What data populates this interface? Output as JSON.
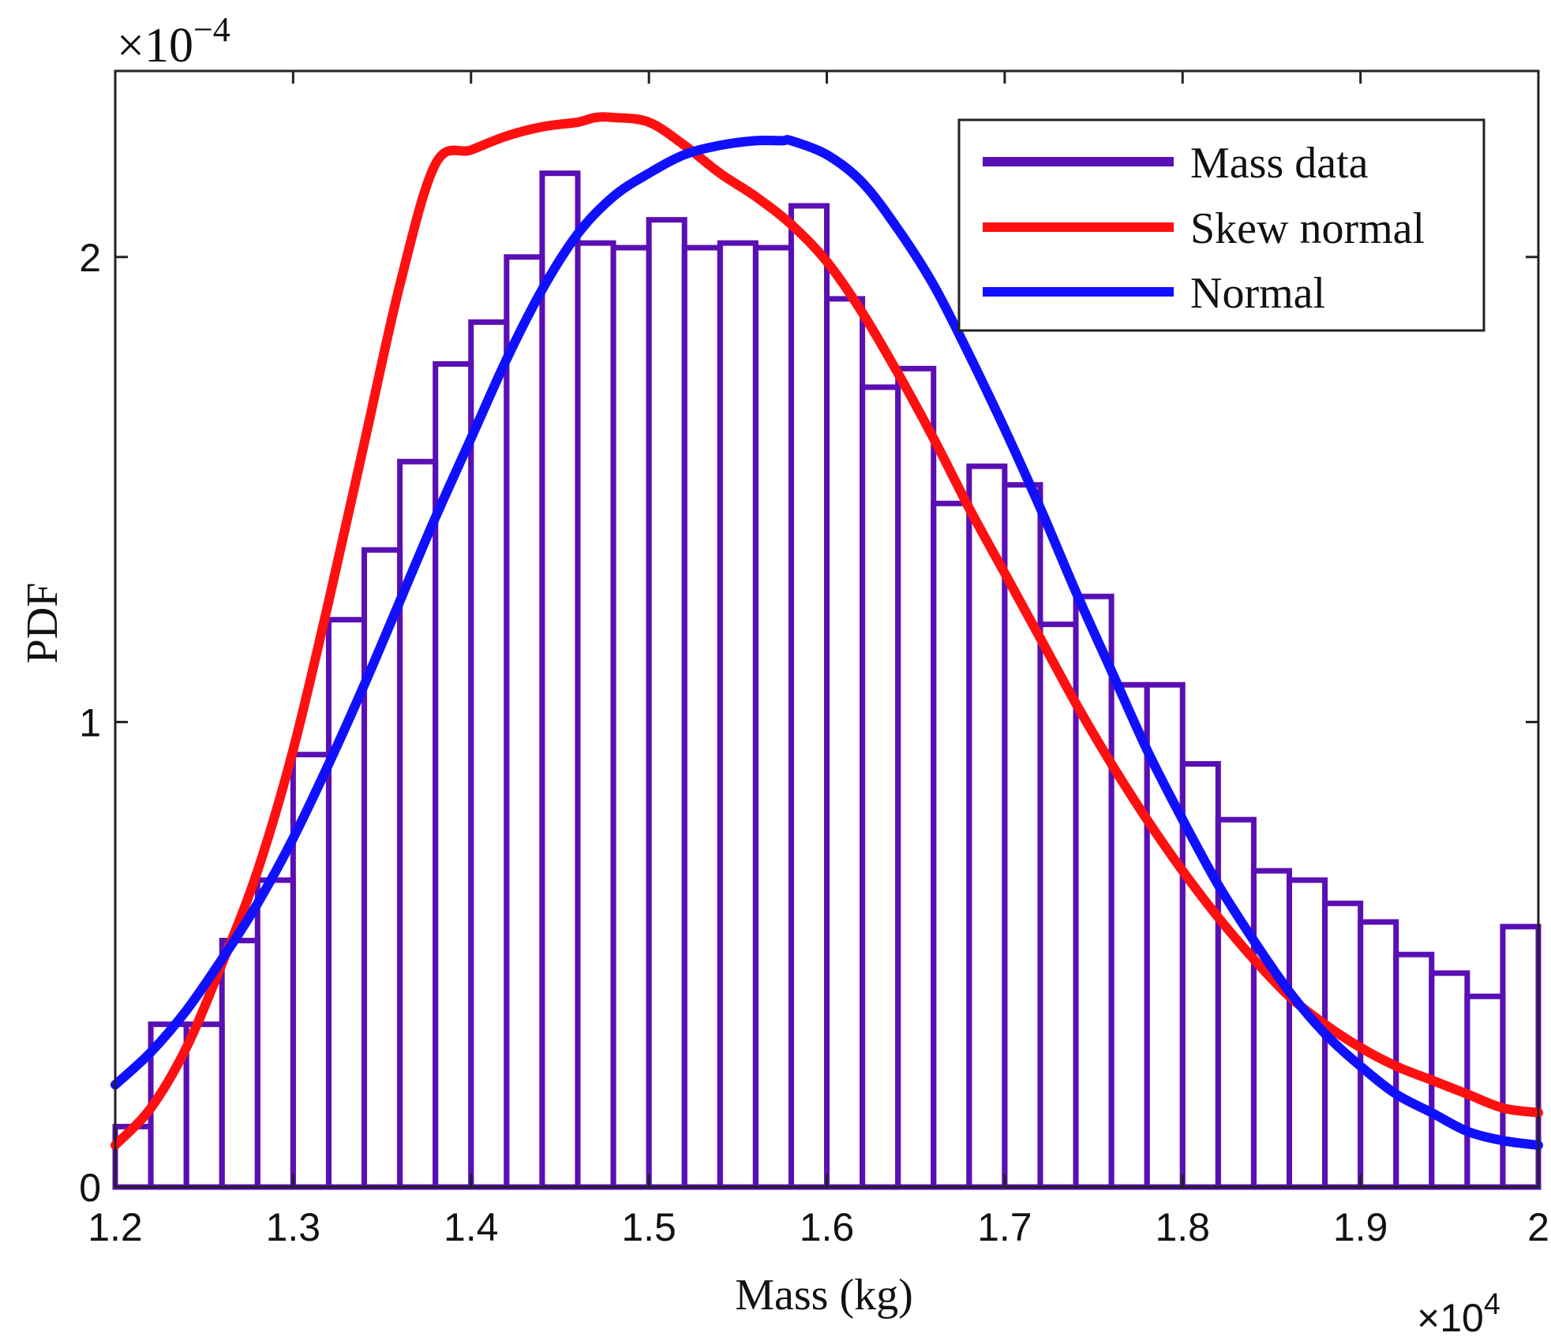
{
  "chart_data": {
    "type": "bar",
    "xlabel": "Mass (kg)",
    "ylabel": "PDF",
    "x_multiplier": {
      "base": "×10",
      "exponent": "4"
    },
    "y_multiplier": {
      "base": "×10",
      "exponent": "−4"
    },
    "xlim": [
      1.2,
      2.0
    ],
    "ylim": [
      0,
      2.4
    ],
    "xticks": [
      1.2,
      1.3,
      1.4,
      1.5,
      1.6,
      1.7,
      1.8,
      1.9,
      2.0
    ],
    "xtick_labels": [
      "1.2",
      "1.3",
      "1.4",
      "1.5",
      "1.6",
      "1.7",
      "1.8",
      "1.9",
      "2"
    ],
    "yticks": [
      0,
      1,
      2
    ],
    "ytick_labels": [
      "0",
      "1",
      "2"
    ],
    "legend_position": "top-right",
    "grid": false,
    "series": [
      {
        "name": "Mass data",
        "type": "histogram",
        "color": "#5a0fb4",
        "bin_edges": [
          1.2,
          1.22,
          1.24,
          1.26,
          1.28,
          1.3,
          1.32,
          1.34,
          1.36,
          1.38,
          1.4,
          1.42,
          1.44,
          1.46,
          1.48,
          1.5,
          1.52,
          1.54,
          1.56,
          1.58,
          1.6,
          1.62,
          1.64,
          1.66,
          1.68,
          1.7,
          1.72,
          1.74,
          1.76,
          1.78,
          1.8,
          1.82,
          1.84,
          1.86,
          1.88,
          1.9,
          1.92,
          1.94,
          1.96,
          1.98,
          2.0
        ],
        "values": [
          0.13,
          0.35,
          0.35,
          0.53,
          0.66,
          0.93,
          1.22,
          1.37,
          1.56,
          1.77,
          1.86,
          2.0,
          2.18,
          2.03,
          2.02,
          2.08,
          2.02,
          2.03,
          2.02,
          2.11,
          1.91,
          1.72,
          1.76,
          1.47,
          1.55,
          1.51,
          1.21,
          1.27,
          1.08,
          1.08,
          0.91,
          0.79,
          0.68,
          0.66,
          0.61,
          0.57,
          0.5,
          0.46,
          0.41,
          0.56
        ]
      },
      {
        "name": "Skew normal",
        "type": "line",
        "color": "#ff1010",
        "x": [
          1.2,
          1.22,
          1.24,
          1.26,
          1.28,
          1.3,
          1.32,
          1.34,
          1.36,
          1.38,
          1.4,
          1.42,
          1.44,
          1.46,
          1.47,
          1.48,
          1.5,
          1.52,
          1.54,
          1.56,
          1.58,
          1.6,
          1.62,
          1.64,
          1.66,
          1.68,
          1.7,
          1.72,
          1.74,
          1.76,
          1.78,
          1.8,
          1.82,
          1.84,
          1.86,
          1.88,
          1.9,
          1.92,
          1.94,
          1.96,
          1.98,
          2.0
        ],
        "y": [
          0.09,
          0.17,
          0.3,
          0.48,
          0.68,
          0.94,
          1.26,
          1.6,
          1.94,
          2.2,
          2.23,
          2.26,
          2.28,
          2.29,
          2.3,
          2.3,
          2.29,
          2.24,
          2.18,
          2.13,
          2.07,
          1.99,
          1.88,
          1.75,
          1.61,
          1.46,
          1.32,
          1.18,
          1.04,
          0.91,
          0.79,
          0.68,
          0.58,
          0.49,
          0.41,
          0.35,
          0.3,
          0.26,
          0.23,
          0.2,
          0.17,
          0.16
        ]
      },
      {
        "name": "Normal",
        "type": "line",
        "color": "#1010ff",
        "x": [
          1.2,
          1.22,
          1.24,
          1.26,
          1.28,
          1.3,
          1.32,
          1.34,
          1.36,
          1.38,
          1.4,
          1.42,
          1.44,
          1.46,
          1.48,
          1.5,
          1.52,
          1.54,
          1.56,
          1.575,
          1.58,
          1.6,
          1.62,
          1.64,
          1.66,
          1.68,
          1.7,
          1.72,
          1.74,
          1.76,
          1.78,
          1.8,
          1.82,
          1.84,
          1.86,
          1.88,
          1.9,
          1.92,
          1.94,
          1.96,
          1.98,
          2.0
        ],
        "y": [
          0.22,
          0.29,
          0.38,
          0.49,
          0.61,
          0.75,
          0.91,
          1.08,
          1.26,
          1.44,
          1.61,
          1.78,
          1.93,
          2.05,
          2.13,
          2.18,
          2.22,
          2.24,
          2.25,
          2.25,
          2.25,
          2.22,
          2.16,
          2.06,
          1.94,
          1.79,
          1.63,
          1.46,
          1.28,
          1.11,
          0.94,
          0.79,
          0.65,
          0.53,
          0.42,
          0.33,
          0.26,
          0.2,
          0.16,
          0.12,
          0.1,
          0.09
        ]
      }
    ]
  }
}
